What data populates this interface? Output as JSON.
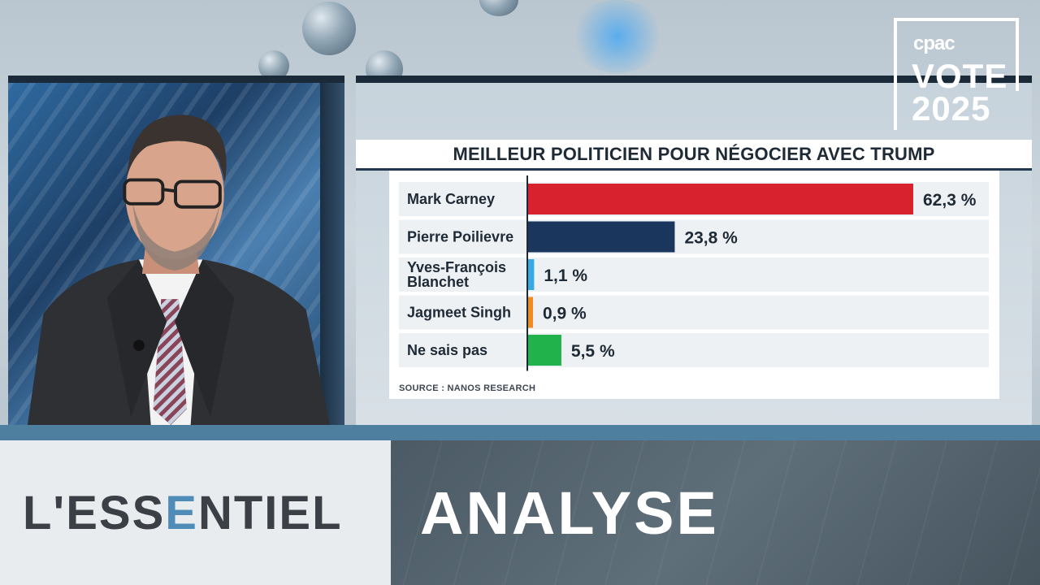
{
  "logo": {
    "brand": "cpac",
    "line1": "VOTE",
    "line2": "2025"
  },
  "lower_third": {
    "brand_pre": "L'ESS",
    "brand_accent": "E",
    "brand_post": "NTIEL",
    "section": "ANALYSE"
  },
  "colors": {
    "accent_blue": "#4f8cb8",
    "lower_third_bar": "#4f7f9f",
    "carney": "#d8232f",
    "poilievre": "#1b365d",
    "blanchet": "#39a9e1",
    "singh": "#f08a24",
    "ne_sais_pas": "#22b24c"
  },
  "chart_data": {
    "type": "bar",
    "orientation": "horizontal",
    "title": "MEILLEUR POLITICIEN POUR NÉGOCIER AVEC TRUMP",
    "source": "SOURCE : NANOS RESEARCH",
    "categories": [
      "Mark Carney",
      "Pierre Poilievre",
      "Yves-François Blanchet",
      "Jagmeet Singh",
      "Ne sais pas"
    ],
    "category_lines": [
      [
        "Mark Carney"
      ],
      [
        "Pierre Poilievre"
      ],
      [
        "Yves-François",
        "Blanchet"
      ],
      [
        "Jagmeet Singh"
      ],
      [
        "Ne sais pas"
      ]
    ],
    "values": [
      62.3,
      23.8,
      1.1,
      0.9,
      5.5
    ],
    "value_labels": [
      "62,3 %",
      "23,8 %",
      "1,1 %",
      "0,9 %",
      "5,5 %"
    ],
    "bar_colors": [
      "#d8232f",
      "#1b365d",
      "#39a9e1",
      "#f08a24",
      "#22b24c"
    ],
    "xlim": [
      0,
      100
    ],
    "grid": false,
    "legend": "none"
  }
}
